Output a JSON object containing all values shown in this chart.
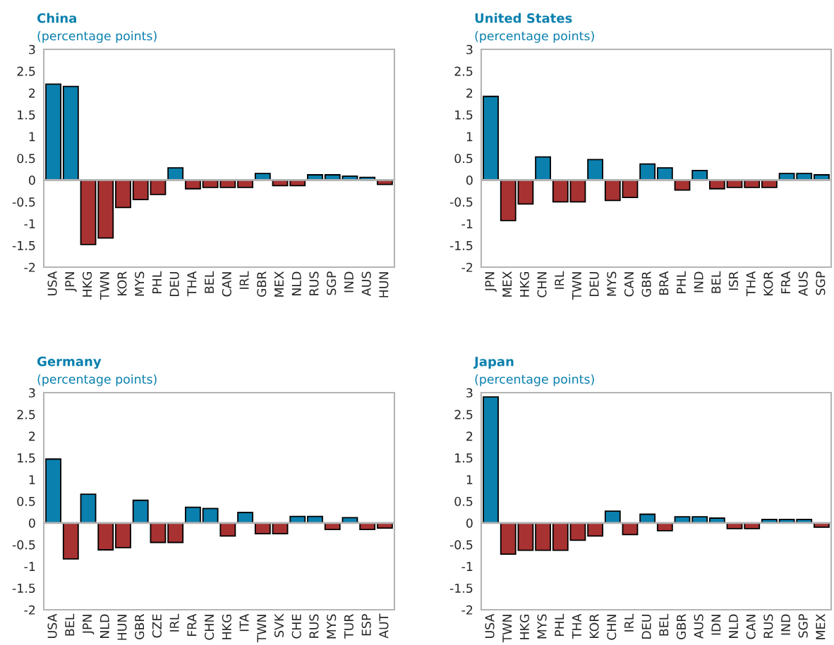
{
  "chart_data": [
    {
      "type": "bar",
      "title": "China",
      "subtitle": "(percentage points)",
      "categories": [
        "USA",
        "JPN",
        "HKG",
        "TWN",
        "KOR",
        "MYS",
        "PHL",
        "DEU",
        "THA",
        "BEL",
        "CAN",
        "IRL",
        "GBR",
        "MEX",
        "NLD",
        "RUS",
        "SGP",
        "IND",
        "AUS",
        "HUN"
      ],
      "values": [
        2.2,
        2.15,
        -1.48,
        -1.33,
        -0.63,
        -0.45,
        -0.33,
        0.28,
        -0.2,
        -0.17,
        -0.17,
        -0.17,
        0.15,
        -0.13,
        -0.13,
        0.12,
        0.12,
        0.09,
        0.06,
        -0.1
      ],
      "colors": [
        "#0a80ae",
        "#0a80ae",
        "#a83232",
        "#a83232",
        "#a83232",
        "#a83232",
        "#a83232",
        "#0a80ae",
        "#a83232",
        "#a83232",
        "#a83232",
        "#a83232",
        "#0a80ae",
        "#a83232",
        "#a83232",
        "#0a80ae",
        "#0a80ae",
        "#0a80ae",
        "#0a80ae",
        "#a83232"
      ],
      "ylim": [
        -2,
        3
      ],
      "yticks": [
        -2,
        -1.5,
        -1,
        -0.5,
        0,
        0.5,
        1,
        1.5,
        2,
        2.5,
        3
      ]
    },
    {
      "type": "bar",
      "title": "United States",
      "subtitle": "(percentage points)",
      "categories": [
        "JPN",
        "MEX",
        "HKG",
        "CHN",
        "IRL",
        "TWN",
        "DEU",
        "MYS",
        "CAN",
        "GBR",
        "BRA",
        "PHL",
        "IND",
        "BEL",
        "ISR",
        "THA",
        "KOR",
        "FRA",
        "AUS",
        "SGP"
      ],
      "values": [
        1.92,
        -0.93,
        -0.55,
        0.53,
        -0.5,
        -0.5,
        0.47,
        -0.47,
        -0.4,
        0.37,
        0.28,
        -0.23,
        0.22,
        -0.2,
        -0.17,
        -0.17,
        -0.17,
        0.15,
        0.15,
        0.12
      ],
      "colors": [
        "#0a80ae",
        "#a83232",
        "#a83232",
        "#0a80ae",
        "#a83232",
        "#a83232",
        "#0a80ae",
        "#a83232",
        "#a83232",
        "#0a80ae",
        "#0a80ae",
        "#a83232",
        "#0a80ae",
        "#a83232",
        "#a83232",
        "#a83232",
        "#a83232",
        "#0a80ae",
        "#0a80ae",
        "#0a80ae"
      ],
      "ylim": [
        -2,
        3
      ],
      "yticks": [
        -2,
        -1.5,
        -1,
        -0.5,
        0,
        0.5,
        1,
        1.5,
        2,
        2.5,
        3
      ]
    },
    {
      "type": "bar",
      "title": "Germany",
      "subtitle": "(percentage points)",
      "categories": [
        "USA",
        "BEL",
        "JPN",
        "NLD",
        "HUN",
        "GBR",
        "CZE",
        "IRL",
        "FRA",
        "CHN",
        "HKG",
        "ITA",
        "TWN",
        "SVK",
        "CHE",
        "RUS",
        "MYS",
        "TUR",
        "ESP",
        "AUT"
      ],
      "values": [
        1.47,
        -0.83,
        0.66,
        -0.62,
        -0.57,
        0.52,
        -0.45,
        -0.45,
        0.36,
        0.33,
        -0.3,
        0.24,
        -0.25,
        -0.25,
        0.15,
        0.15,
        -0.15,
        0.12,
        -0.15,
        -0.12
      ],
      "colors": [
        "#0a80ae",
        "#a83232",
        "#0a80ae",
        "#a83232",
        "#a83232",
        "#0a80ae",
        "#a83232",
        "#a83232",
        "#0a80ae",
        "#0a80ae",
        "#a83232",
        "#0a80ae",
        "#a83232",
        "#a83232",
        "#0a80ae",
        "#0a80ae",
        "#a83232",
        "#0a80ae",
        "#a83232",
        "#a83232"
      ],
      "ylim": [
        -2,
        3
      ],
      "yticks": [
        -2,
        -1.5,
        -1,
        -0.5,
        0,
        0.5,
        1,
        1.5,
        2,
        2.5,
        3
      ]
    },
    {
      "type": "bar",
      "title": "Japan",
      "subtitle": "(percentage points)",
      "categories": [
        "USA",
        "TWN",
        "HKG",
        "MYS",
        "PHL",
        "THA",
        "KOR",
        "CHN",
        "IRL",
        "DEU",
        "BEL",
        "GBR",
        "AUS",
        "IDN",
        "NLD",
        "CAN",
        "RUS",
        "IND",
        "SGP",
        "MEX"
      ],
      "values": [
        2.9,
        -0.72,
        -0.63,
        -0.63,
        -0.63,
        -0.4,
        -0.3,
        0.27,
        -0.27,
        0.2,
        -0.18,
        0.14,
        0.14,
        0.11,
        -0.13,
        -0.13,
        0.08,
        0.08,
        0.08,
        -0.1
      ],
      "colors": [
        "#0a80ae",
        "#a83232",
        "#a83232",
        "#a83232",
        "#a83232",
        "#a83232",
        "#a83232",
        "#0a80ae",
        "#a83232",
        "#0a80ae",
        "#a83232",
        "#0a80ae",
        "#0a80ae",
        "#0a80ae",
        "#a83232",
        "#a83232",
        "#0a80ae",
        "#0a80ae",
        "#0a80ae",
        "#a83232"
      ],
      "ylim": [
        -2,
        3
      ],
      "yticks": [
        -2,
        -1.5,
        -1,
        -0.5,
        0,
        0.5,
        1,
        1.5,
        2,
        2.5,
        3
      ]
    }
  ]
}
